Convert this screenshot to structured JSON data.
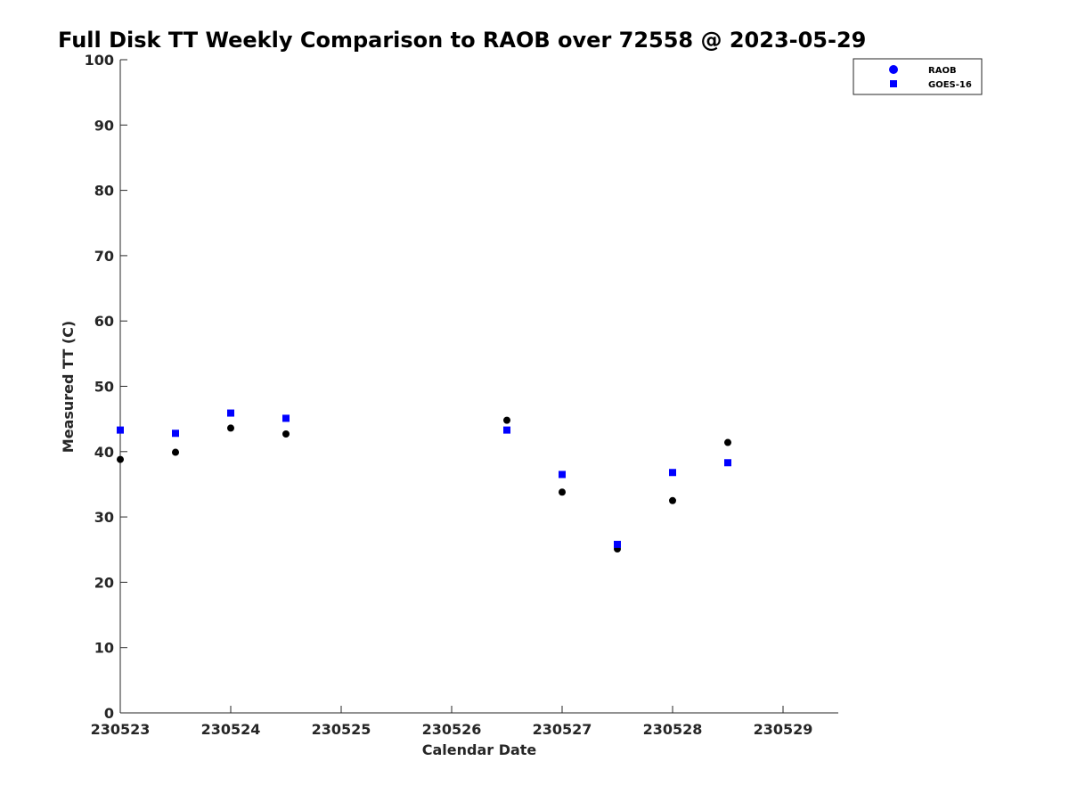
{
  "chart_data": {
    "type": "scatter",
    "title": "Full Disk TT Weekly Comparison to RAOB over 72558 @ 2023-05-29",
    "xlabel": "Calendar Date",
    "ylabel": "Measured TT (C)",
    "x_tick_labels": [
      "230523",
      "230524",
      "230525",
      "230526",
      "230527",
      "230528",
      "230529"
    ],
    "x_tick_values": [
      0,
      1,
      2,
      3,
      4,
      5,
      6
    ],
    "xlim": [
      0,
      6.5
    ],
    "ylim": [
      0,
      100
    ],
    "y_ticks": [
      0,
      10,
      20,
      30,
      40,
      50,
      60,
      70,
      80,
      90,
      100
    ],
    "grid": false,
    "legend_position": "top-right",
    "series": [
      {
        "name": "RAOB",
        "marker": "circle",
        "color": "#000000",
        "legend_color": "#0000ff",
        "x": [
          0,
          0.5,
          1,
          1.5,
          3.5,
          4,
          4.5,
          5,
          5.5
        ],
        "y": [
          38.8,
          39.9,
          43.6,
          42.7,
          44.8,
          33.8,
          25.1,
          32.5,
          41.4
        ]
      },
      {
        "name": "GOES-16",
        "marker": "square",
        "color": "#0000ff",
        "legend_color": "#0000ff",
        "x": [
          0,
          0.5,
          1,
          1.5,
          3.5,
          4,
          4.5,
          5,
          5.5
        ],
        "y": [
          43.3,
          42.8,
          45.9,
          45.1,
          43.3,
          36.5,
          25.8,
          36.8,
          38.3
        ]
      }
    ]
  }
}
